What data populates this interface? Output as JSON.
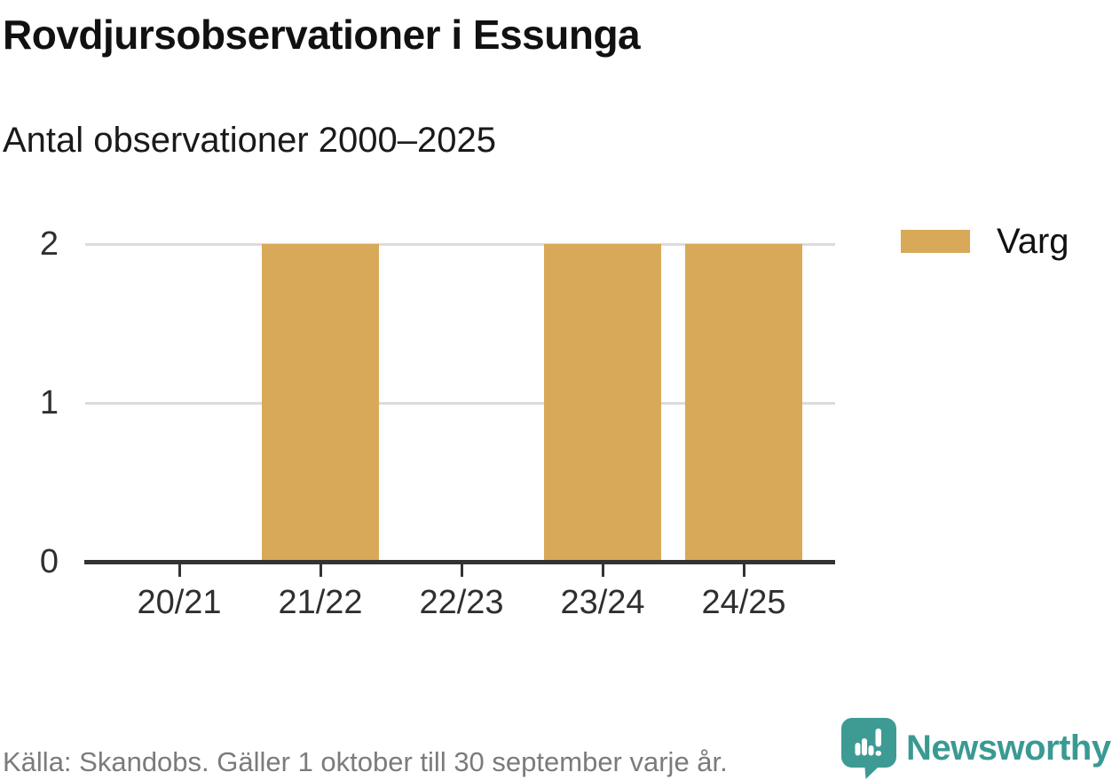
{
  "header": {
    "title": "Rovdjursobservationer i Essunga",
    "subtitle": "Antal observationer 2000–2025"
  },
  "legend": {
    "items": [
      {
        "label": "Varg",
        "color": "#D8A958"
      }
    ]
  },
  "footer": {
    "source": "Källa: Skandobs. Gäller 1 oktober till 30 september varje år.",
    "brand": "Newsworthy"
  },
  "colors": {
    "bar": "#D8A958",
    "axis": "#333333",
    "gridline": "#DCDCDC",
    "tick_label": "#2F2F2F",
    "source_text": "#7B7B7B",
    "brand_teal": "#3A9A93"
  },
  "chart_data": {
    "type": "bar",
    "categories": [
      "20/21",
      "21/22",
      "22/23",
      "23/24",
      "24/25"
    ],
    "series": [
      {
        "name": "Varg",
        "color": "#D8A958",
        "values": [
          0,
          2,
          0,
          2,
          2
        ]
      }
    ],
    "title": "Rovdjursobservationer i Essunga",
    "subtitle": "Antal observationer 2000–2025",
    "xlabel": "",
    "ylabel": "",
    "ylim": [
      0,
      2
    ],
    "yticks": [
      0,
      1,
      2
    ],
    "grid": "horizontal-only",
    "legend_position": "right"
  }
}
